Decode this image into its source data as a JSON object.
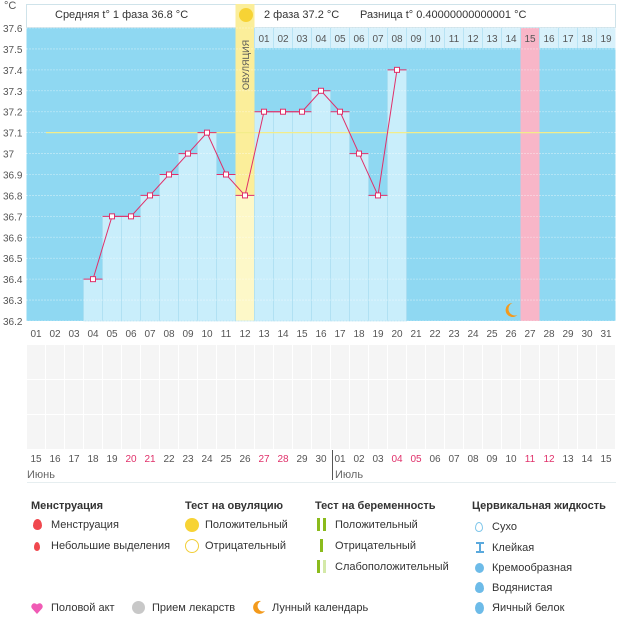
{
  "header": {
    "unit": "°C",
    "phase1": "Средняя t° 1 фаза 36.8 °C",
    "phase2": "2 фаза 37.2 °C",
    "diff": "Разница t° 0.40000000000001 °C",
    "ovulation_label": "ОВУЛЯЦИЯ"
  },
  "chart_data": {
    "type": "line",
    "ylabel": "°C",
    "ylim": [
      36.2,
      37.6
    ],
    "yticks": [
      "37.6",
      "37.5",
      "37.4",
      "37.3",
      "37.2",
      "37.1",
      "37",
      "36.9",
      "36.8",
      "36.7",
      "36.6",
      "36.5",
      "36.4",
      "36.3",
      "36.2"
    ],
    "cycle_days": [
      "01",
      "02",
      "03",
      "04",
      "05",
      "06",
      "07",
      "08",
      "09",
      "10",
      "11",
      "12",
      "13",
      "14",
      "15",
      "16",
      "17",
      "18",
      "19",
      "20",
      "21",
      "22",
      "23",
      "24",
      "25",
      "26",
      "27",
      "28",
      "29",
      "30",
      "31"
    ],
    "phase2_days": [
      "01",
      "02",
      "03",
      "04",
      "05",
      "06",
      "07",
      "08",
      "09",
      "10",
      "11",
      "12",
      "13",
      "14",
      "15",
      "16",
      "17",
      "18",
      "19"
    ],
    "temperatures": [
      null,
      null,
      null,
      36.4,
      36.7,
      36.7,
      36.8,
      36.9,
      37.0,
      37.1,
      36.9,
      36.8,
      37.2,
      37.2,
      37.2,
      37.3,
      37.2,
      37.0,
      36.8,
      37.4,
      null,
      null,
      null,
      null,
      null,
      null,
      null,
      null,
      null,
      null,
      null
    ],
    "coverline": 37.1,
    "ovulation_day": 12,
    "highlight_day": 27,
    "moon_day": 26
  },
  "calendar": {
    "dates": [
      "15",
      "16",
      "17",
      "18",
      "19",
      "20",
      "21",
      "22",
      "23",
      "24",
      "25",
      "26",
      "27",
      "28",
      "29",
      "30",
      "01",
      "02",
      "03",
      "04",
      "05",
      "06",
      "07",
      "08",
      "09",
      "10",
      "11",
      "12",
      "13",
      "14",
      "15"
    ],
    "weekend": [
      false,
      false,
      false,
      false,
      false,
      true,
      true,
      false,
      false,
      false,
      false,
      false,
      true,
      true,
      false,
      false,
      false,
      false,
      false,
      true,
      true,
      false,
      false,
      false,
      false,
      false,
      true,
      true,
      false,
      false,
      false
    ],
    "month1": "Июнь",
    "month2": "Июль"
  },
  "legend": {
    "menstruation": {
      "title": "Менструация",
      "items": [
        "Менструация",
        "Небольшие выделения"
      ]
    },
    "ovulation_test": {
      "title": "Тест на овуляцию",
      "items": [
        "Положительный",
        "Отрицательный"
      ]
    },
    "pregnancy_test": {
      "title": "Тест на беременность",
      "items": [
        "Положительный",
        "Отрицательный",
        "Слабоположительный"
      ]
    },
    "cervical": {
      "title": "Цервикальная жидкость",
      "items": [
        "Сухо",
        "Клейкая",
        "Кремообразная",
        "Водянистая",
        "Яичный белок"
      ]
    },
    "other": [
      "Половой акт",
      "Прием лекарств",
      "Лунный календарь"
    ]
  },
  "colors": {
    "bg": "#8fd8f2",
    "bar": "#c9eefb",
    "line": "#e0306a",
    "ovulation": "#fbee9a",
    "highlight": "#f8b6c8",
    "weekend": "#e0306a"
  }
}
